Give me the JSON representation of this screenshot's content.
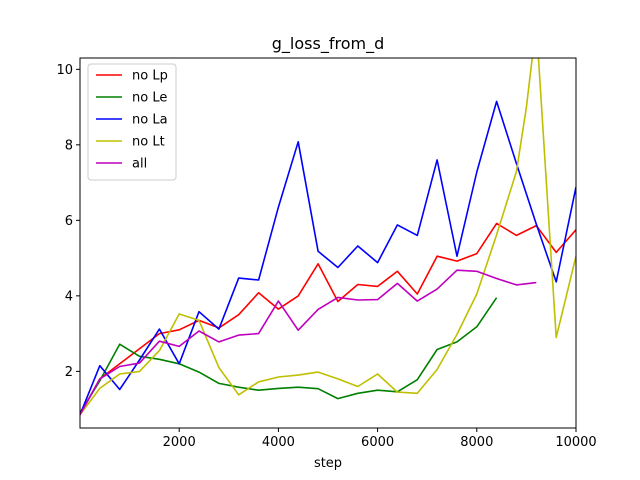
{
  "chart_data": {
    "type": "line",
    "title": "g_loss_from_d",
    "xlabel": "step",
    "ylabel": "",
    "xlim": [
      0,
      10000
    ],
    "ylim": [
      0.5,
      10.3
    ],
    "xticks": [
      2000,
      4000,
      6000,
      8000,
      10000
    ],
    "yticks": [
      2,
      4,
      6,
      8,
      10
    ],
    "grid": false,
    "legend_position": "top-left",
    "series": [
      {
        "name": "no Lp",
        "color": "#ff0000",
        "x": [
          0,
          400,
          800,
          1200,
          1600,
          2000,
          2400,
          2800,
          3200,
          3600,
          4000,
          4400,
          4800,
          5200,
          5600,
          6000,
          6400,
          6800,
          7200,
          7600,
          8000,
          8400,
          8800,
          9200,
          9600,
          10000
        ],
        "y": [
          0.85,
          1.8,
          2.2,
          2.6,
          3.0,
          3.1,
          3.35,
          3.15,
          3.5,
          4.08,
          3.65,
          4.0,
          4.85,
          3.85,
          4.3,
          4.25,
          4.65,
          4.05,
          5.05,
          4.92,
          5.12,
          5.92,
          5.6,
          5.86,
          5.15,
          5.75
        ]
      },
      {
        "name": "no Le",
        "color": "#008000",
        "x": [
          0,
          400,
          800,
          1200,
          1600,
          2000,
          2400,
          2800,
          3200,
          3600,
          4000,
          4400,
          4800,
          5200,
          5600,
          6000,
          6400,
          6800,
          7200,
          7600,
          8000,
          8400
        ],
        "y": [
          0.9,
          1.75,
          2.72,
          2.4,
          2.32,
          2.2,
          1.98,
          1.68,
          1.58,
          1.5,
          1.55,
          1.58,
          1.54,
          1.28,
          1.42,
          1.5,
          1.46,
          1.78,
          2.58,
          2.78,
          3.18,
          3.95
        ]
      },
      {
        "name": "no La",
        "color": "#0000ff",
        "x": [
          0,
          400,
          800,
          1200,
          1600,
          2000,
          2400,
          2800,
          3200,
          3600,
          4000,
          4400,
          4800,
          5200,
          5600,
          6000,
          6400,
          6800,
          7200,
          7600,
          8000,
          8400,
          8800,
          9200,
          9600,
          10000
        ],
        "y": [
          0.85,
          2.15,
          1.52,
          2.3,
          3.12,
          2.2,
          3.58,
          3.12,
          4.47,
          4.42,
          6.35,
          8.08,
          5.18,
          4.75,
          5.32,
          4.88,
          5.88,
          5.6,
          7.6,
          5.05,
          7.28,
          9.15,
          7.5,
          5.9,
          4.37,
          6.88
        ]
      },
      {
        "name": "no Lt",
        "color": "#bfbf00",
        "x": [
          0,
          400,
          800,
          1200,
          1600,
          2000,
          2400,
          2800,
          3200,
          3600,
          4000,
          4400,
          4800,
          5200,
          5600,
          6000,
          6400,
          6800,
          7200,
          7600,
          8000,
          8400,
          8800,
          9000,
          9200,
          9600,
          10000
        ],
        "y": [
          0.85,
          1.55,
          1.93,
          2.0,
          2.55,
          3.52,
          3.35,
          2.1,
          1.38,
          1.72,
          1.85,
          1.9,
          1.98,
          1.8,
          1.6,
          1.93,
          1.45,
          1.42,
          2.05,
          2.98,
          4.05,
          5.62,
          7.3,
          9.0,
          11.2,
          2.9,
          5.05
        ]
      },
      {
        "name": "all",
        "color": "#bf00bf",
        "x": [
          0,
          400,
          800,
          1200,
          1600,
          2000,
          2400,
          2800,
          3200,
          3600,
          4000,
          4400,
          4800,
          5200,
          5600,
          6000,
          6400,
          6800,
          7200,
          7600,
          8000,
          8400,
          8800,
          9200
        ],
        "y": [
          0.85,
          1.8,
          2.13,
          2.22,
          2.8,
          2.66,
          3.07,
          2.78,
          2.96,
          3.0,
          3.86,
          3.09,
          3.64,
          3.96,
          3.89,
          3.9,
          4.33,
          3.86,
          4.18,
          4.68,
          4.65,
          4.46,
          4.29,
          4.35
        ]
      }
    ]
  }
}
